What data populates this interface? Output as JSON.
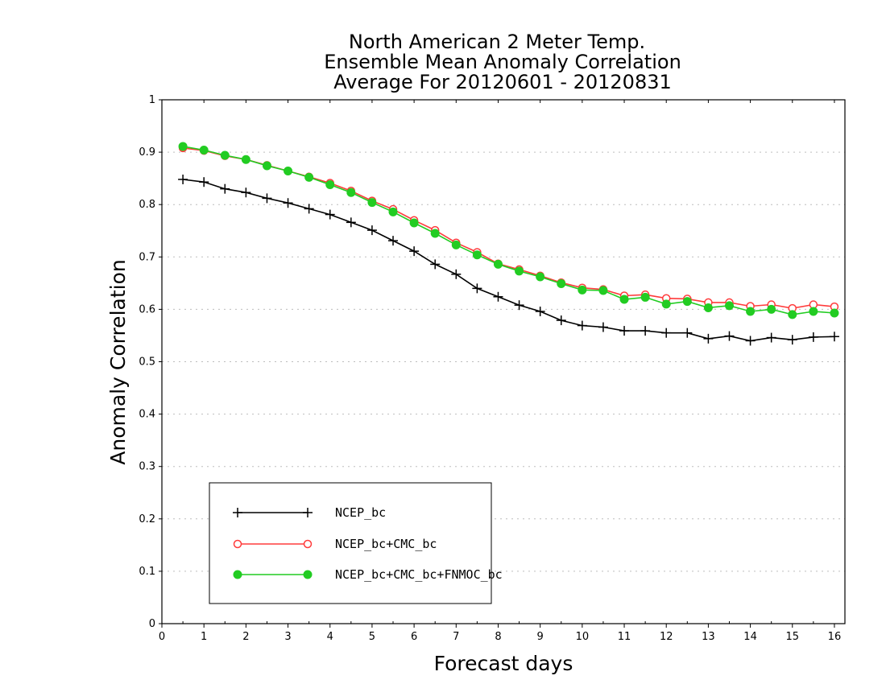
{
  "chart_data": {
    "type": "line",
    "title": [
      "North American 2 Meter Temp.",
      "Ensemble Mean Anomaly Correlation",
      "Average For 20120601 - 20120831"
    ],
    "xlabel": "Forecast days",
    "ylabel": "Anomaly Correlation",
    "xlim": [
      0,
      16.25
    ],
    "ylim": [
      0,
      1
    ],
    "xticks": [
      0,
      1,
      2,
      3,
      4,
      5,
      6,
      7,
      8,
      9,
      10,
      11,
      12,
      13,
      14,
      15,
      16
    ],
    "xtick_labels": [
      "0",
      "1",
      "2",
      "3",
      "4",
      "5",
      "6",
      "7",
      "8",
      "9",
      "10",
      "11",
      "12",
      "13",
      "14",
      "15",
      "16"
    ],
    "yticks": [
      0,
      0.1,
      0.2,
      0.3,
      0.4,
      0.5,
      0.6,
      0.7,
      0.8,
      0.9,
      1
    ],
    "ytick_labels": [
      "0",
      "0.1",
      "0.2",
      "0.3",
      "0.4",
      "0.5",
      "0.6",
      "0.7",
      "0.8",
      "0.9",
      "1"
    ],
    "grid": true,
    "legend_position": "bottom-left",
    "x": [
      0.5,
      1,
      1.5,
      2,
      2.5,
      3,
      3.5,
      4,
      4.5,
      5,
      5.5,
      6,
      6.5,
      7,
      7.5,
      8,
      8.5,
      9,
      9.5,
      10,
      10.5,
      11,
      11.5,
      12,
      12.5,
      13,
      13.5,
      14,
      14.5,
      15,
      15.5,
      16
    ],
    "series": [
      {
        "name": "NCEP_bc",
        "color": "#000000",
        "marker": "plus",
        "values": [
          0.848,
          0.843,
          0.83,
          0.823,
          0.812,
          0.803,
          0.792,
          0.781,
          0.766,
          0.751,
          0.731,
          0.711,
          0.686,
          0.667,
          0.64,
          0.624,
          0.608,
          0.596,
          0.579,
          0.569,
          0.566,
          0.559,
          0.559,
          0.555,
          0.555,
          0.544,
          0.549,
          0.54,
          0.546,
          0.542,
          0.547,
          0.548
        ]
      },
      {
        "name": "NCEP_bc+CMC_bc",
        "color": "#ff3b3b",
        "marker": "open-circle",
        "values": [
          0.908,
          0.903,
          0.893,
          0.886,
          0.875,
          0.864,
          0.853,
          0.841,
          0.826,
          0.807,
          0.791,
          0.77,
          0.751,
          0.727,
          0.709,
          0.687,
          0.676,
          0.664,
          0.651,
          0.641,
          0.638,
          0.626,
          0.628,
          0.621,
          0.62,
          0.613,
          0.613,
          0.606,
          0.609,
          0.602,
          0.609,
          0.605
        ]
      },
      {
        "name": "NCEP_bc+CMC_bc+FNMOC_bc",
        "color": "#22cc22",
        "marker": "filled-circle",
        "values": [
          0.911,
          0.904,
          0.894,
          0.886,
          0.874,
          0.864,
          0.852,
          0.838,
          0.823,
          0.804,
          0.786,
          0.765,
          0.745,
          0.723,
          0.704,
          0.686,
          0.673,
          0.662,
          0.649,
          0.637,
          0.636,
          0.619,
          0.623,
          0.61,
          0.615,
          0.603,
          0.607,
          0.596,
          0.6,
          0.59,
          0.596,
          0.593
        ]
      }
    ]
  }
}
